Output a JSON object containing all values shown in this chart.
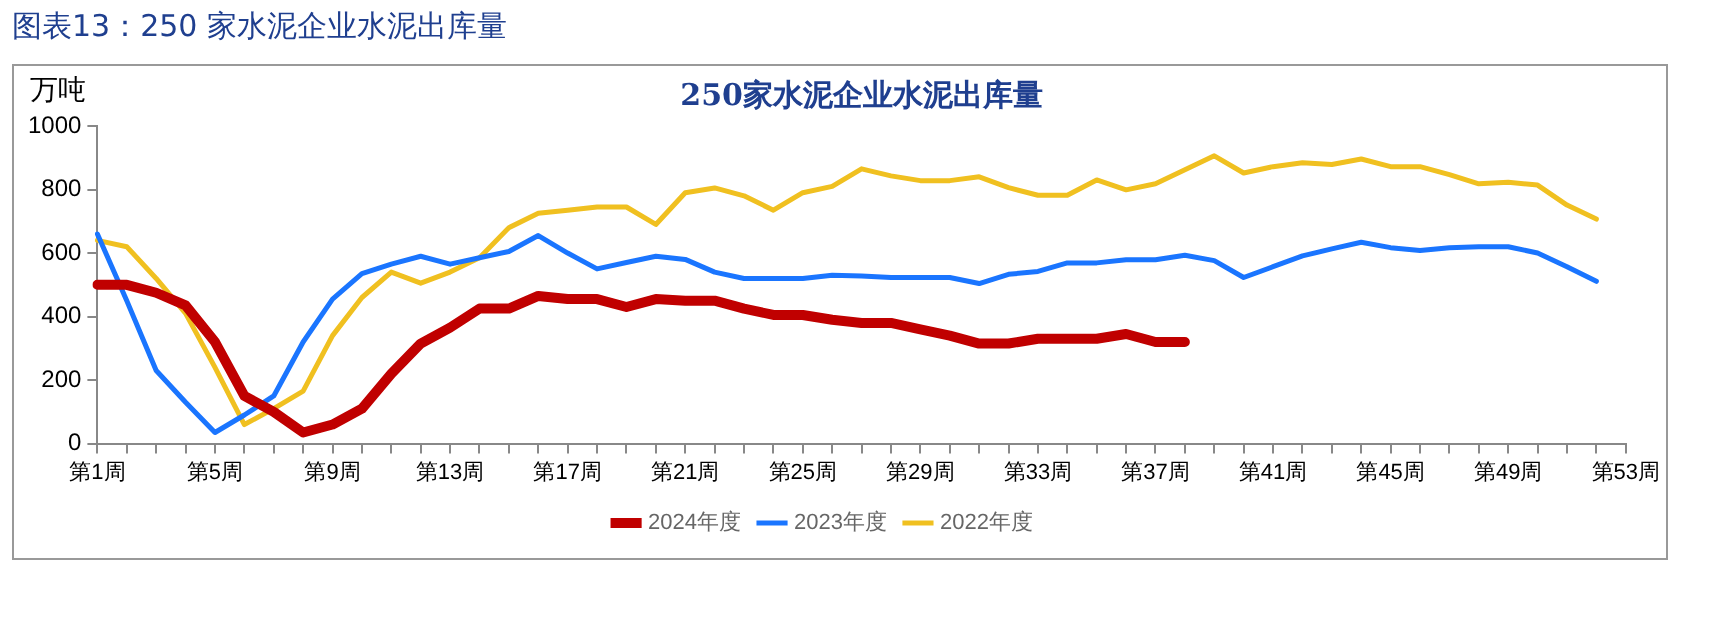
{
  "chart_data": {
    "type": "line",
    "title": "250家水泥企业水泥出库量",
    "ylabel": "万吨",
    "annotations": [
      "图表13：250 家水泥企业水泥出库量"
    ],
    "categories": [
      "第1周",
      null,
      null,
      null,
      "第5周",
      null,
      null,
      null,
      "第9周",
      null,
      null,
      null,
      "第13周",
      null,
      null,
      null,
      "第17周",
      null,
      null,
      null,
      "第21周",
      null,
      null,
      null,
      "第25周",
      null,
      null,
      null,
      "第29周",
      null,
      null,
      null,
      "第33周",
      null,
      null,
      null,
      "第37周",
      null,
      null,
      null,
      "第41周",
      null,
      null,
      null,
      "第45周",
      null,
      null,
      null,
      "第49周",
      null,
      null,
      null,
      "第53周"
    ],
    "series": [
      {
        "name": "2024年度",
        "color": "#c00000",
        "values": [
          500,
          500,
          475,
          435,
          320,
          150,
          100,
          35,
          60,
          110,
          220,
          315,
          365,
          425,
          425,
          465,
          455,
          455,
          430,
          455,
          450,
          450,
          425,
          405,
          405,
          390,
          380,
          380,
          360,
          340,
          315,
          315,
          330,
          330,
          330,
          345,
          320,
          320,
          null,
          null,
          null,
          null,
          null,
          null,
          null,
          null,
          null,
          null,
          null,
          null,
          null,
          null,
          null
        ]
      },
      {
        "name": "2023年度",
        "color": "#1a75ff",
        "values": [
          660,
          450,
          230,
          130,
          35,
          90,
          150,
          320,
          455,
          535,
          565,
          590,
          565,
          585,
          605,
          655,
          600,
          550,
          570,
          590,
          580,
          540,
          520,
          520,
          520,
          530,
          528,
          523,
          523,
          523,
          504,
          533,
          542,
          569,
          569,
          579,
          579,
          593,
          576,
          523,
          557,
          591,
          613,
          634,
          617,
          608,
          617,
          620,
          620,
          600,
          557,
          511,
          null
        ]
      },
      {
        "name": "2022年度",
        "color": "#f0c020",
        "values": [
          640,
          620,
          520,
          410,
          240,
          60,
          110,
          165,
          340,
          460,
          540,
          505,
          540,
          585,
          680,
          725,
          735,
          745,
          745,
          690,
          790,
          805,
          780,
          735,
          790,
          810,
          865,
          843,
          828,
          828,
          840,
          806,
          782,
          782,
          830,
          799,
          818,
          862,
          906,
          852,
          872,
          884,
          879,
          896,
          872,
          872,
          847,
          818,
          823,
          814,
          751,
          707,
          null
        ]
      }
    ],
    "ylim": [
      0,
      1000
    ],
    "yticks": [
      0,
      200,
      400,
      600,
      800,
      1000
    ],
    "legend": "bottom",
    "marker": "none",
    "line_style": "solid",
    "grid": false
  }
}
